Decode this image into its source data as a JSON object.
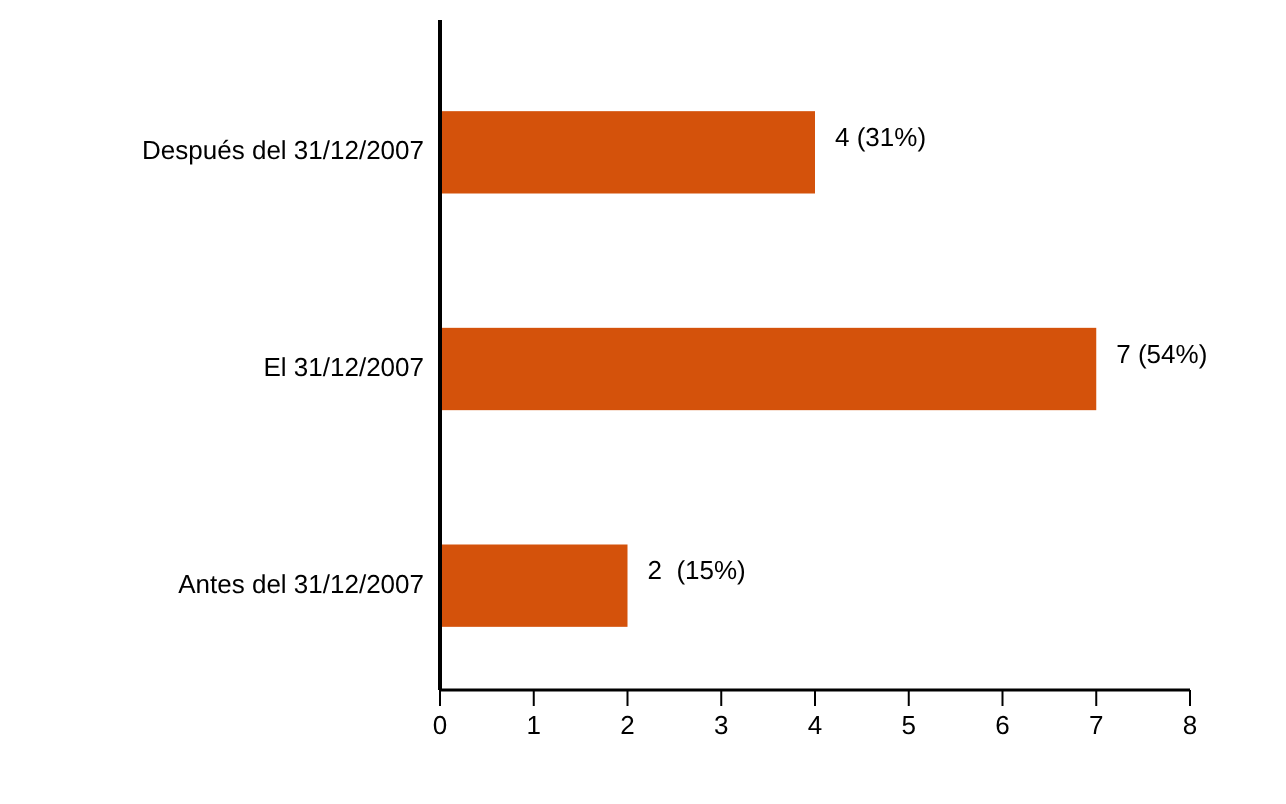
{
  "chart_data": {
    "type": "bar",
    "orientation": "horizontal",
    "categories": [
      "Después del 31/12/2007",
      "El 31/12/2007",
      "Antes del 31/12/2007"
    ],
    "values": [
      4,
      7,
      2
    ],
    "value_labels": [
      "4 (31%)",
      "7 (54%)",
      "2  (15%)"
    ],
    "color": "#d4520b",
    "xlim": [
      0,
      8
    ],
    "xticks": [
      0,
      1,
      2,
      3,
      4,
      5,
      6,
      7,
      8
    ]
  }
}
